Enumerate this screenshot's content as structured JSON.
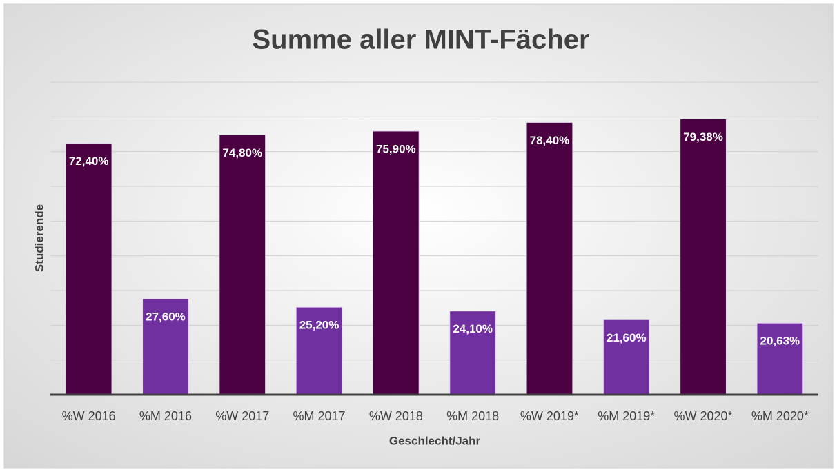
{
  "chart_data": {
    "type": "bar",
    "title": "Summe aller MINT-Fächer",
    "x_label": "Geschlecht/Jahr",
    "y_label": "Studierende",
    "categories": [
      "%W 2016",
      "%M 2016",
      "%W 2017",
      "%M 2017",
      "%W 2018",
      "%M 2018",
      "%W 2019*",
      "%M 2019*",
      "%W 2020*",
      "%M 2020*"
    ],
    "values": [
      72.4,
      27.6,
      74.8,
      25.2,
      75.9,
      24.1,
      78.4,
      21.6,
      79.38,
      20.63
    ],
    "value_labels": [
      "72,40%",
      "27,60%",
      "74,80%",
      "25,20%",
      "75,90%",
      "24,10%",
      "78,40%",
      "21,60%",
      "79,38%",
      "20,63%"
    ],
    "colors": [
      "#4b0042",
      "#7030a0",
      "#4b0042",
      "#7030a0",
      "#4b0042",
      "#7030a0",
      "#4b0042",
      "#7030a0",
      "#4b0042",
      "#7030a0"
    ],
    "ylim": [
      0,
      90
    ],
    "yticks": [
      0,
      10,
      20,
      30,
      40,
      50,
      60,
      70,
      80,
      90
    ],
    "grid": true
  }
}
